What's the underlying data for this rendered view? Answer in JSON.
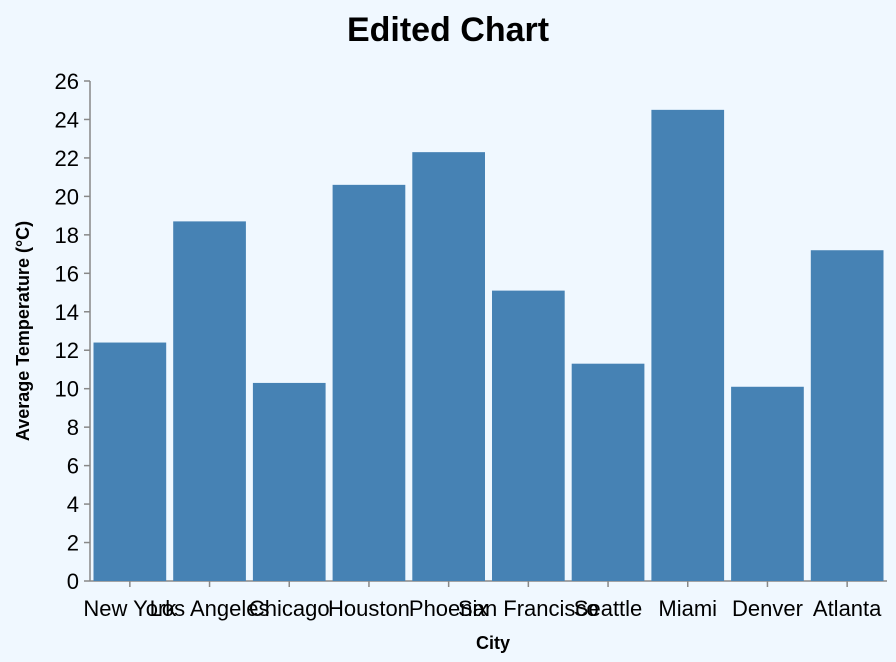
{
  "chart_data": {
    "type": "bar",
    "title": "Edited Chart",
    "xlabel": "City",
    "ylabel": "Average Temperature (°C)",
    "categories": [
      "New York",
      "Los Angeles",
      "Chicago",
      "Houston",
      "Phoenix",
      "San Francisco",
      "Seattle",
      "Miami",
      "Denver",
      "Atlanta"
    ],
    "values": [
      12.4,
      18.7,
      10.3,
      20.6,
      22.3,
      15.1,
      11.3,
      24.5,
      10.1,
      17.2
    ],
    "ylim": [
      0,
      26
    ],
    "yticks": [
      0,
      2,
      4,
      6,
      8,
      10,
      12,
      14,
      16,
      18,
      20,
      22,
      24,
      26
    ],
    "grid": false,
    "colors": {
      "bar": "#4682b4",
      "background": "#f0f8ff",
      "axis": "#888888"
    }
  }
}
